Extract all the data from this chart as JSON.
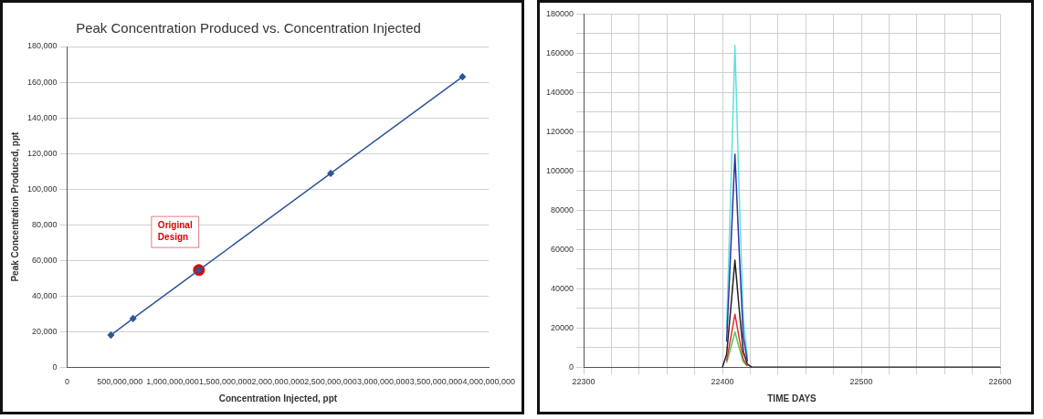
{
  "chart_data": [
    {
      "type": "line",
      "title": "Peak Concentration Produced vs. Concentration Injected",
      "xlabel": "Concentration Injected, ppt",
      "ylabel": "Peak Concentration Produced, ppt",
      "xlim": [
        0,
        4000000000
      ],
      "xticks": [
        0,
        {
          "value": 500000000,
          "label": "500,000,000"
        },
        {
          "value": 1000000000,
          "label": "1,000,000,000"
        },
        {
          "value": 1500000000,
          "label": "1,500,000,000"
        },
        {
          "value": 2000000000,
          "label": "2,000,000,000"
        },
        {
          "value": 2500000000,
          "label": "2,500,000,000"
        },
        {
          "value": 3000000000,
          "label": "3,000,000,000"
        },
        {
          "value": 3500000000,
          "label": "3,500,000,000"
        },
        {
          "value": 4000000000,
          "label": "4,000,000,000"
        }
      ],
      "ylim": [
        0,
        180000
      ],
      "yticks": [
        0,
        {
          "value": 20000,
          "label": "20,000"
        },
        {
          "value": 40000,
          "label": "40,000"
        },
        {
          "value": 60000,
          "label": "60,000"
        },
        {
          "value": 80000,
          "label": "80,000"
        },
        {
          "value": 100000,
          "label": "100,000"
        },
        {
          "value": 120000,
          "label": "120,000"
        },
        {
          "value": 140000,
          "label": "140,000"
        },
        {
          "value": 160000,
          "label": "160,000"
        },
        {
          "value": 180000,
          "label": "180,000"
        }
      ],
      "grid": "y",
      "legend": false,
      "line_style": "solid",
      "series": [
        {
          "color": "#2f5597",
          "marker": "diamond",
          "x": [
            415000000,
            625000000,
            1250000000,
            2500000000,
            3750000000
          ],
          "values": [
            18000,
            27300,
            54500,
            108800,
            163000
          ]
        },
        {
          "type": "scatter",
          "color": "#e00000",
          "marker": "circle",
          "x": [
            1250000000
          ],
          "values": [
            54500
          ]
        }
      ],
      "annotations": [
        "Original Design"
      ]
    },
    {
      "type": "line",
      "xlabel": "TIME DAYS",
      "xlim": [
        22300,
        22600
      ],
      "xticks": [
        22300,
        {
          "value": 22320,
          "label": null
        },
        {
          "value": 22340,
          "label": null
        },
        {
          "value": 22360,
          "label": null
        },
        {
          "value": 22380,
          "label": null
        },
        22400,
        {
          "value": 22420,
          "label": null
        },
        {
          "value": 22440,
          "label": null
        },
        {
          "value": 22460,
          "label": null
        },
        {
          "value": 22480,
          "label": null
        },
        22500,
        {
          "value": 22520,
          "label": null
        },
        {
          "value": 22540,
          "label": null
        },
        {
          "value": 22560,
          "label": null
        },
        {
          "value": 22580,
          "label": null
        },
        22600
      ],
      "ylim": [
        0,
        180000
      ],
      "yticks": [
        0,
        {
          "value": 10000,
          "label": null
        },
        20000,
        {
          "value": 30000,
          "label": null
        },
        40000,
        {
          "value": 50000,
          "label": null
        },
        60000,
        {
          "value": 70000,
          "label": null
        },
        80000,
        {
          "value": 90000,
          "label": null
        },
        100000,
        {
          "value": 110000,
          "label": null
        },
        120000,
        {
          "value": 130000,
          "label": null
        },
        140000,
        {
          "value": 150000,
          "label": null
        },
        160000,
        {
          "value": 170000,
          "label": null
        },
        180000
      ],
      "grid": true,
      "legend": false,
      "marker": "none",
      "line_style": "solid",
      "x": [
        22403,
        22406,
        22409,
        22412,
        22415,
        22418
      ],
      "series": [
        {
          "color": "#e03030",
          "values": [
            3200,
            15000,
            27000,
            15000,
            4000,
            800
          ]
        },
        {
          "color": "#50d050",
          "values": [
            2200,
            10000,
            18000,
            10000,
            2700,
            500
          ]
        },
        {
          "color": "#3030a0",
          "values": [
            13000,
            60000,
            108500,
            60000,
            16000,
            3000
          ]
        },
        {
          "color": "#60e0e0",
          "values": [
            20000,
            90000,
            164000,
            90000,
            25000,
            5000
          ]
        },
        {
          "color": "#202020",
          "x": [
            22400,
            22403,
            22406,
            22409,
            22412,
            22415,
            22418,
            22421,
            22600
          ],
          "values": [
            0,
            6500,
            30000,
            54500,
            30000,
            8000,
            1500,
            0,
            0
          ]
        }
      ]
    }
  ]
}
